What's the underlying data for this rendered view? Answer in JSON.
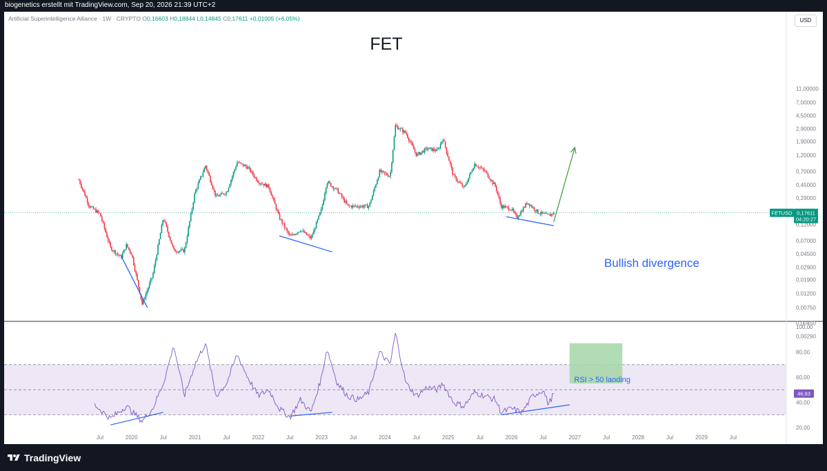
{
  "header": {
    "attribution": "biogenetics erstellt mit TradingView.com, Sep 20, 2026 21:39 UTC+2"
  },
  "symbol_line": {
    "name": "Artificial Superintelligence Alliance · 1W · CRYPTO",
    "open_label": "O",
    "open": "0,16603",
    "high_label": "H",
    "high": "0,18844",
    "low_label": "L",
    "low": "0,14845",
    "close_label": "C",
    "close": "0,17611",
    "change": "+0,01005 (+6,05%)"
  },
  "currency_button": "USD",
  "annotations": {
    "title": "FET",
    "bullish": "Bullish divergence",
    "rsi_note": "RSI > 50 laoding"
  },
  "price_tag": {
    "symbol": "FETUSD",
    "price": "0,17611",
    "countdown": "04:20:27"
  },
  "rsi_tag": "46,93",
  "footer": {
    "brand": "TradingView"
  },
  "colors": {
    "up": "#089981",
    "down": "#f23645",
    "rsi_line": "#7e57c2",
    "rsi_band": "#ede7f6",
    "divergence": "#2962ff",
    "arrow": "#43a047",
    "note_box": "#a5d6a7"
  },
  "chart_data": [
    {
      "type": "candlestick",
      "title": "FET",
      "y_scale": "log",
      "price_axis_ticks": [
        "11,00000",
        "7,00000",
        "4,50000",
        "2,90000",
        "1,90000",
        "1,20000",
        "0,70000",
        "0,45000",
        "0,29000",
        "0,18000",
        "0,12000",
        "0,07000",
        "0,04500",
        "0,02900",
        "0,01900",
        "0,01200",
        "0,00750",
        "0,00450",
        "0,00290"
      ],
      "time_axis_ticks": [
        "Jul",
        "2020",
        "Jul",
        "2021",
        "Jul",
        "2022",
        "Jul",
        "2023",
        "Jul",
        "2024",
        "Jul",
        "2025",
        "Jul",
        "2026",
        "Jul",
        "2027",
        "Jul",
        "2028",
        "Jul",
        "2029",
        "Jul"
      ],
      "last_price": 0.17611,
      "path": [
        [
          "2019-03",
          0.53
        ],
        [
          "2019-05",
          0.22
        ],
        [
          "2019-07",
          0.17
        ],
        [
          "2019-09",
          0.055
        ],
        [
          "2019-11",
          0.04
        ],
        [
          "2019-12",
          0.06
        ],
        [
          "2020-01",
          0.045
        ],
        [
          "2020-03",
          0.0085
        ],
        [
          "2020-05",
          0.022
        ],
        [
          "2020-07",
          0.15
        ],
        [
          "2020-09",
          0.05
        ],
        [
          "2020-11",
          0.05
        ],
        [
          "2021-01",
          0.35
        ],
        [
          "2021-03",
          0.85
        ],
        [
          "2021-05",
          0.3
        ],
        [
          "2021-07",
          0.35
        ],
        [
          "2021-09",
          0.95
        ],
        [
          "2021-11",
          0.8
        ],
        [
          "2022-01",
          0.5
        ],
        [
          "2022-03",
          0.42
        ],
        [
          "2022-05",
          0.15
        ],
        [
          "2022-07",
          0.08
        ],
        [
          "2022-09",
          0.1
        ],
        [
          "2022-11",
          0.075
        ],
        [
          "2023-01",
          0.2
        ],
        [
          "2023-02",
          0.5
        ],
        [
          "2023-04",
          0.37
        ],
        [
          "2023-06",
          0.22
        ],
        [
          "2023-08",
          0.22
        ],
        [
          "2023-10",
          0.22
        ],
        [
          "2023-12",
          0.7
        ],
        [
          "2024-02",
          0.6
        ],
        [
          "2024-03",
          3.2
        ],
        [
          "2024-05",
          2.5
        ],
        [
          "2024-07",
          1.2
        ],
        [
          "2024-09",
          1.5
        ],
        [
          "2024-11",
          1.4
        ],
        [
          "2024-12",
          2.1
        ],
        [
          "2025-02",
          0.6
        ],
        [
          "2025-04",
          0.4
        ],
        [
          "2025-06",
          0.9
        ],
        [
          "2025-08",
          0.7
        ],
        [
          "2025-10",
          0.42
        ],
        [
          "2025-11",
          0.22
        ],
        [
          "2026-01",
          0.2
        ],
        [
          "2026-02",
          0.15
        ],
        [
          "2026-04",
          0.25
        ],
        [
          "2026-06",
          0.18
        ],
        [
          "2026-08",
          0.16
        ],
        [
          "2026-09",
          0.17611
        ]
      ]
    },
    {
      "type": "line",
      "title": "RSI",
      "y_axis_ticks": [
        "100,00",
        "80,00",
        "60,00",
        "40,00",
        "20,00"
      ],
      "ylim": [
        10,
        105
      ],
      "band": [
        30,
        70
      ],
      "midline": 50,
      "last_value": 46.93,
      "series": [
        {
          "values": [
            [
              "2019-06",
              38
            ],
            [
              "2019-09",
              27
            ],
            [
              "2019-12",
              37
            ],
            [
              "2020-03",
              25
            ],
            [
              "2020-05",
              35
            ],
            [
              "2020-07",
              55
            ],
            [
              "2020-09",
              85
            ],
            [
              "2020-11",
              45
            ],
            [
              "2021-01",
              70
            ],
            [
              "2021-03",
              87
            ],
            [
              "2021-05",
              45
            ],
            [
              "2021-07",
              55
            ],
            [
              "2021-09",
              78
            ],
            [
              "2021-11",
              60
            ],
            [
              "2022-01",
              45
            ],
            [
              "2022-03",
              50
            ],
            [
              "2022-05",
              35
            ],
            [
              "2022-07",
              28
            ],
            [
              "2022-09",
              42
            ],
            [
              "2022-11",
              32
            ],
            [
              "2023-01",
              60
            ],
            [
              "2023-02",
              83
            ],
            [
              "2023-04",
              55
            ],
            [
              "2023-06",
              45
            ],
            [
              "2023-08",
              42
            ],
            [
              "2023-10",
              48
            ],
            [
              "2023-12",
              80
            ],
            [
              "2024-02",
              70
            ],
            [
              "2024-03",
              95
            ],
            [
              "2024-05",
              55
            ],
            [
              "2024-07",
              45
            ],
            [
              "2024-09",
              52
            ],
            [
              "2024-11",
              50
            ],
            [
              "2024-12",
              55
            ],
            [
              "2025-02",
              40
            ],
            [
              "2025-04",
              37
            ],
            [
              "2025-06",
              48
            ],
            [
              "2025-08",
              45
            ],
            [
              "2025-10",
              42
            ],
            [
              "2025-11",
              32
            ],
            [
              "2026-01",
              35
            ],
            [
              "2026-03",
              32
            ],
            [
              "2026-05",
              45
            ],
            [
              "2026-07",
              50
            ],
            [
              "2026-08",
              38
            ],
            [
              "2026-09",
              46.93
            ]
          ]
        }
      ]
    }
  ]
}
